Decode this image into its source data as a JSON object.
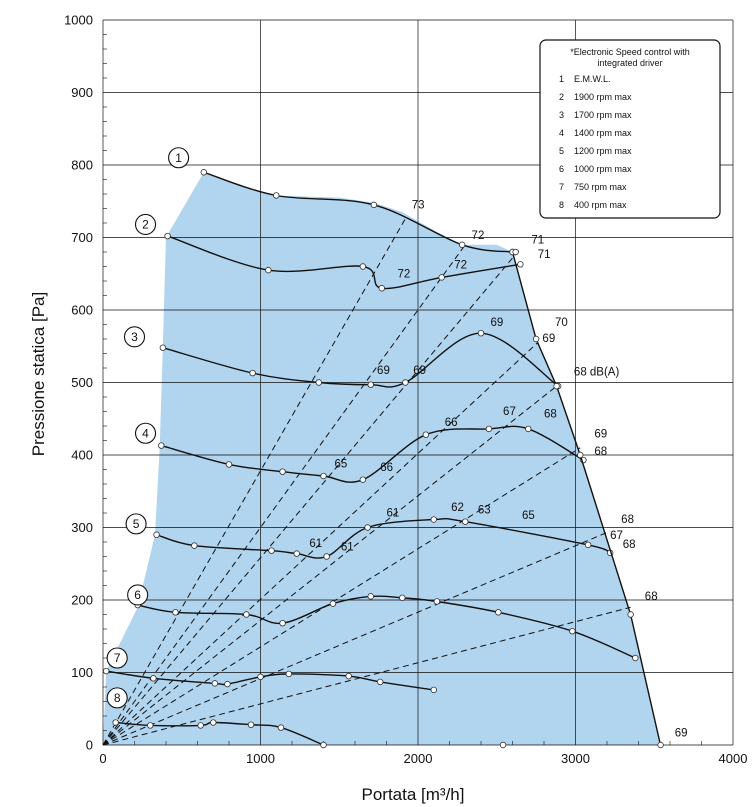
{
  "chart_data": {
    "type": "line",
    "xlabel": "Portata [m³/h]",
    "ylabel": "Pressione statica [Pa]",
    "xlim": [
      0,
      4000
    ],
    "ylim": [
      0,
      1000
    ],
    "x_ticks": [
      "0",
      "1000",
      "2000",
      "3000",
      "4000"
    ],
    "y_ticks": [
      "0",
      "100",
      "200",
      "300",
      "400",
      "500",
      "600",
      "700",
      "800",
      "900",
      "1000"
    ],
    "grid": true,
    "legend": {
      "placement": "top-right",
      "title_lines": [
        "*Electronic Speed control with",
        "integrated driver"
      ],
      "entries": [
        {
          "num": "1",
          "text": "E.M.W.L."
        },
        {
          "num": "2",
          "text": "1900 rpm max"
        },
        {
          "num": "3",
          "text": "1700 rpm max"
        },
        {
          "num": "4",
          "text": "1400 rpm max"
        },
        {
          "num": "5",
          "text": "1200 rpm max"
        },
        {
          "num": "6",
          "text": "1000 rpm max"
        },
        {
          "num": "7",
          "text": "750 rpm max"
        },
        {
          "num": "8",
          "text": "400 rpm max"
        }
      ]
    },
    "operating_area": [
      [
        640,
        790
      ],
      [
        400,
        700
      ],
      [
        380,
        550
      ],
      [
        360,
        410
      ],
      [
        330,
        290
      ],
      [
        220,
        190
      ],
      [
        20,
        102
      ],
      [
        0,
        0
      ],
      [
        3540,
        0
      ],
      [
        3350,
        180
      ],
      [
        3030,
        400
      ],
      [
        2880,
        495
      ],
      [
        2750,
        560
      ],
      [
        2640,
        650
      ],
      [
        2600,
        680
      ],
      [
        2500,
        690
      ],
      [
        2280,
        690
      ],
      [
        2100,
        710
      ],
      [
        1900,
        735
      ],
      [
        1720,
        748
      ],
      [
        1500,
        755
      ],
      [
        1100,
        758
      ],
      [
        900,
        770
      ],
      [
        640,
        790
      ]
    ],
    "series": [
      {
        "name": "1",
        "points": [
          [
            640,
            790
          ],
          [
            1100,
            758
          ],
          [
            1720,
            745
          ],
          [
            2280,
            690
          ],
          [
            2600,
            680
          ]
        ]
      },
      {
        "name": "2",
        "points": [
          [
            410,
            702
          ],
          [
            1050,
            655
          ],
          [
            1650,
            660
          ],
          [
            1770,
            630
          ],
          [
            2150,
            645
          ],
          [
            2650,
            663
          ]
        ]
      },
      {
        "name": "3",
        "points": [
          [
            380,
            548
          ],
          [
            950,
            513
          ],
          [
            1370,
            500
          ],
          [
            1700,
            497
          ],
          [
            1920,
            500
          ],
          [
            2400,
            568
          ],
          [
            2890,
            495
          ]
        ]
      },
      {
        "name": "4",
        "points": [
          [
            370,
            413
          ],
          [
            800,
            387
          ],
          [
            1140,
            377
          ],
          [
            1400,
            371
          ],
          [
            1650,
            366
          ],
          [
            2050,
            428
          ],
          [
            2450,
            436
          ],
          [
            2700,
            436
          ],
          [
            3050,
            393
          ]
        ]
      },
      {
        "name": "5",
        "points": [
          [
            340,
            290
          ],
          [
            580,
            275
          ],
          [
            1070,
            268
          ],
          [
            1230,
            264
          ],
          [
            1420,
            260
          ],
          [
            1680,
            300
          ],
          [
            2100,
            311
          ],
          [
            2300,
            308
          ],
          [
            3080,
            276
          ],
          [
            3220,
            265
          ]
        ]
      },
      {
        "name": "6",
        "points": [
          [
            220,
            193
          ],
          [
            460,
            183
          ],
          [
            910,
            180
          ],
          [
            1140,
            168
          ],
          [
            1460,
            195
          ],
          [
            1700,
            205
          ],
          [
            1900,
            203
          ],
          [
            2120,
            198
          ],
          [
            2510,
            183
          ],
          [
            2980,
            157
          ],
          [
            3380,
            120
          ]
        ]
      },
      {
        "name": "7",
        "points": [
          [
            20,
            102
          ],
          [
            320,
            92
          ],
          [
            710,
            85
          ],
          [
            790,
            84
          ],
          [
            1000,
            94
          ],
          [
            1180,
            98
          ],
          [
            1560,
            95
          ],
          [
            1760,
            87
          ],
          [
            2100,
            76
          ]
        ]
      },
      {
        "name": "8",
        "points": [
          [
            80,
            31
          ],
          [
            300,
            27
          ],
          [
            620,
            27
          ],
          [
            700,
            31
          ],
          [
            940,
            28
          ],
          [
            1130,
            24
          ],
          [
            1400,
            0
          ]
        ]
      },
      {
        "name": "boundary",
        "points": [
          [
            2600,
            680
          ],
          [
            2750,
            560
          ],
          [
            2880,
            495
          ],
          [
            3030,
            400
          ],
          [
            3350,
            180
          ],
          [
            3540,
            0
          ]
        ]
      }
    ],
    "extra_markers": [
      [
        2620,
        680
      ],
      [
        2540,
        0
      ]
    ],
    "curve_numbers": [
      {
        "label": "1",
        "x": 480,
        "y": 810
      },
      {
        "label": "2",
        "x": 270,
        "y": 718
      },
      {
        "label": "3",
        "x": 200,
        "y": 563
      },
      {
        "label": "4",
        "x": 270,
        "y": 430
      },
      {
        "label": "5",
        "x": 210,
        "y": 305
      },
      {
        "label": "6",
        "x": 220,
        "y": 207
      },
      {
        "label": "7",
        "x": 90,
        "y": 120
      },
      {
        "label": "8",
        "x": 90,
        "y": 65
      }
    ],
    "isodb_lines": [
      {
        "from": [
          0,
          0
        ],
        "to": [
          1920,
          726
        ]
      },
      {
        "from": [
          0,
          0
        ],
        "to": [
          2300,
          690
        ]
      },
      {
        "from": [
          0,
          0
        ],
        "to": [
          2640,
          682
        ]
      },
      {
        "from": [
          0,
          0
        ],
        "to": [
          2760,
          555
        ]
      },
      {
        "from": [
          0,
          0
        ],
        "to": [
          2880,
          495
        ]
      },
      {
        "from": [
          0,
          0
        ],
        "to": [
          3030,
          410
        ]
      },
      {
        "from": [
          0,
          0
        ],
        "to": [
          3220,
          295
        ]
      },
      {
        "from": [
          0,
          0
        ],
        "to": [
          3350,
          190
        ]
      }
    ],
    "db_labels": [
      {
        "text": "73",
        "x": 1960,
        "y": 740
      },
      {
        "text": "72",
        "x": 2340,
        "y": 698
      },
      {
        "text": "71",
        "x": 2720,
        "y": 692
      },
      {
        "text": "71",
        "x": 2760,
        "y": 672
      },
      {
        "text": "72",
        "x": 1870,
        "y": 645
      },
      {
        "text": "72",
        "x": 2230,
        "y": 657
      },
      {
        "text": "70",
        "x": 2870,
        "y": 578
      },
      {
        "text": "69",
        "x": 2460,
        "y": 578
      },
      {
        "text": "69",
        "x": 2790,
        "y": 556
      },
      {
        "text": "69",
        "x": 1740,
        "y": 512
      },
      {
        "text": "69",
        "x": 1970,
        "y": 512
      },
      {
        "text": "68 dB(A)",
        "x": 2990,
        "y": 510
      },
      {
        "text": "66",
        "x": 2170,
        "y": 440
      },
      {
        "text": "67",
        "x": 2540,
        "y": 455
      },
      {
        "text": "68",
        "x": 2800,
        "y": 452
      },
      {
        "text": "69",
        "x": 3120,
        "y": 424
      },
      {
        "text": "68",
        "x": 3120,
        "y": 400
      },
      {
        "text": "65",
        "x": 1470,
        "y": 383
      },
      {
        "text": "66",
        "x": 1760,
        "y": 378
      },
      {
        "text": "62",
        "x": 2210,
        "y": 323
      },
      {
        "text": "63",
        "x": 2380,
        "y": 319
      },
      {
        "text": "65",
        "x": 2660,
        "y": 312
      },
      {
        "text": "61",
        "x": 1800,
        "y": 315
      },
      {
        "text": "61",
        "x": 1310,
        "y": 273
      },
      {
        "text": "61",
        "x": 1510,
        "y": 268
      },
      {
        "text": "68",
        "x": 3290,
        "y": 306
      },
      {
        "text": "67",
        "x": 3220,
        "y": 284
      },
      {
        "text": "68",
        "x": 3300,
        "y": 272
      },
      {
        "text": "68",
        "x": 3440,
        "y": 200
      },
      {
        "text": "69",
        "x": 3630,
        "y": 12
      }
    ],
    "colors": {
      "area": "#b1d4ef",
      "grid": "#111111",
      "curve": "#111111"
    }
  }
}
